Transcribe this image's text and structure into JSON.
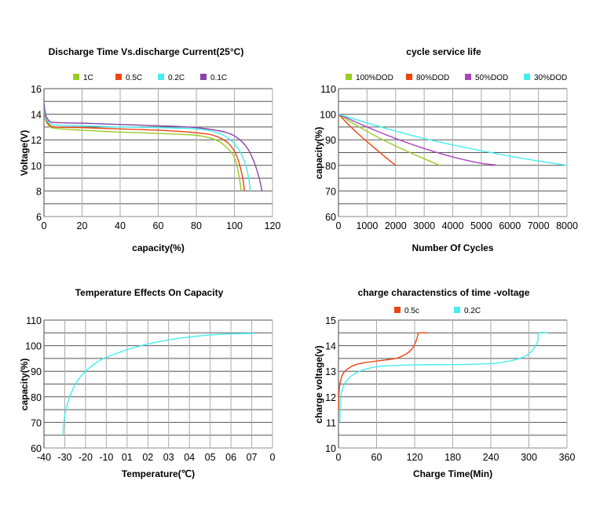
{
  "chart_data": [
    {
      "id": "discharge",
      "type": "line",
      "title": "Discharge Time Vs.discharge Current(25°C)",
      "xlabel": "capacity(%)",
      "ylabel": "Voltage(V)",
      "xlim": [
        0,
        120
      ],
      "ylim": [
        6,
        16
      ],
      "x_ticks": [
        "0",
        "20",
        "40",
        "60",
        "80",
        "100",
        "120"
      ],
      "y_ticks": [
        "6",
        "8",
        "10",
        "12",
        "14",
        "16"
      ],
      "grid": true,
      "legend": "top-center",
      "series": [
        {
          "name": "1C",
          "color": "#99cc22",
          "points": [
            [
              0,
              14.4
            ],
            [
              1,
              13.5
            ],
            [
              3,
              13.05
            ],
            [
              6,
              12.9
            ],
            [
              20,
              12.75
            ],
            [
              40,
              12.6
            ],
            [
              60,
              12.5
            ],
            [
              80,
              12.35
            ],
            [
              90,
              12.0
            ],
            [
              96,
              11.4
            ],
            [
              100,
              10.6
            ],
            [
              102,
              9.5
            ],
            [
              103,
              8.6
            ],
            [
              103.5,
              8
            ]
          ]
        },
        {
          "name": "0.5C",
          "color": "#ee4411",
          "points": [
            [
              0,
              14.5
            ],
            [
              1,
              13.6
            ],
            [
              3,
              13.15
            ],
            [
              6,
              13.0
            ],
            [
              20,
              12.95
            ],
            [
              40,
              12.85
            ],
            [
              60,
              12.75
            ],
            [
              80,
              12.55
            ],
            [
              90,
              12.3
            ],
            [
              97,
              11.7
            ],
            [
              101,
              10.8
            ],
            [
              103.5,
              9.6
            ],
            [
              104.8,
              8.6
            ],
            [
              105.2,
              8
            ]
          ]
        },
        {
          "name": "0.2C",
          "color": "#44eeee",
          "points": [
            [
              0,
              14.6
            ],
            [
              1,
              13.7
            ],
            [
              3,
              13.3
            ],
            [
              6,
              13.15
            ],
            [
              20,
              13.1
            ],
            [
              40,
              13.0
            ],
            [
              60,
              12.95
            ],
            [
              80,
              12.85
            ],
            [
              90,
              12.6
            ],
            [
              97,
              12.1
            ],
            [
              102,
              11.3
            ],
            [
              105.5,
              10.2
            ],
            [
              107.5,
              9.0
            ],
            [
              108.3,
              8
            ]
          ]
        },
        {
          "name": "0.1C",
          "color": "#8844aa",
          "points": [
            [
              0,
              14.8
            ],
            [
              1,
              13.9
            ],
            [
              3,
              13.45
            ],
            [
              6,
              13.35
            ],
            [
              20,
              13.3
            ],
            [
              40,
              13.2
            ],
            [
              60,
              13.1
            ],
            [
              80,
              12.95
            ],
            [
              95,
              12.6
            ],
            [
              102,
              12.1
            ],
            [
              107,
              11.3
            ],
            [
              110.5,
              10.2
            ],
            [
              113,
              9.0
            ],
            [
              114.5,
              8
            ]
          ]
        }
      ]
    },
    {
      "id": "cycle",
      "type": "line",
      "title": "cycle service life",
      "xlabel": "Number Of Cycles",
      "ylabel": "capacity(%)",
      "xlim": [
        0,
        8000
      ],
      "ylim": [
        60,
        110
      ],
      "x_ticks": [
        "0",
        "1000",
        "2000",
        "3000",
        "4000",
        "5000",
        "6000",
        "7000",
        "8000"
      ],
      "y_ticks": [
        "60",
        "70",
        "80",
        "90",
        "100",
        "110"
      ],
      "grid": true,
      "legend": "top-center",
      "series": [
        {
          "name": "100%DOD",
          "color": "#99cc22",
          "points": [
            [
              0,
              100
            ],
            [
              500,
              96.5
            ],
            [
              1000,
              93.3
            ],
            [
              1500,
              90.3
            ],
            [
              2000,
              87.6
            ],
            [
              2500,
              85.0
            ],
            [
              3000,
              82.6
            ],
            [
              3500,
              80.2
            ],
            [
              3550,
              80
            ]
          ]
        },
        {
          "name": "80%DOD",
          "color": "#ee4411",
          "points": [
            [
              0,
              100
            ],
            [
              400,
              95.4
            ],
            [
              800,
              91.2
            ],
            [
              1200,
              87.4
            ],
            [
              1600,
              83.6
            ],
            [
              2000,
              80
            ]
          ]
        },
        {
          "name": "50%DOD",
          "color": "#aa44bb",
          "points": [
            [
              0,
              100
            ],
            [
              1000,
              95.0
            ],
            [
              2000,
              90.5
            ],
            [
              3000,
              86.6
            ],
            [
              4000,
              83.3
            ],
            [
              5000,
              80.8
            ],
            [
              5500,
              80.2
            ]
          ]
        },
        {
          "name": "30%DOD",
          "color": "#44eeee",
          "points": [
            [
              0,
              100
            ],
            [
              1000,
              96.6
            ],
            [
              2000,
              93.4
            ],
            [
              3000,
              90.5
            ],
            [
              4000,
              88.0
            ],
            [
              5000,
              85.7
            ],
            [
              6000,
              83.6
            ],
            [
              7000,
              81.7
            ],
            [
              8000,
              80
            ]
          ]
        }
      ]
    },
    {
      "id": "temperature",
      "type": "line",
      "title": "Temperature Effects On Capacity",
      "xlabel": "Temperature(℃)",
      "ylabel": "capacity(%)",
      "xlim": [
        -40,
        80
      ],
      "ylim": [
        60,
        110
      ],
      "x_ticks": [
        "-40",
        "-30",
        "-20",
        "-10",
        "01",
        "02",
        "03",
        "04",
        "05",
        "06",
        "07",
        "0"
      ],
      "y_ticks": [
        "60",
        "70",
        "80",
        "90",
        "100",
        "110"
      ],
      "grid": true,
      "legend": "none",
      "series": [
        {
          "name": "capacity",
          "color": "#44eeee",
          "points": [
            [
              -30,
              65
            ],
            [
              -29.6,
              70
            ],
            [
              -28.5,
              75
            ],
            [
              -26.5,
              80
            ],
            [
              -23.5,
              85
            ],
            [
              -19.5,
              89
            ],
            [
              -15,
              92
            ],
            [
              -10,
              94.5
            ],
            [
              0,
              97.5
            ],
            [
              10,
              99.8
            ],
            [
              20,
              101.5
            ],
            [
              30,
              102.8
            ],
            [
              40,
              103.7
            ],
            [
              50,
              104.3
            ],
            [
              60,
              104.7
            ],
            [
              70,
              104.8
            ]
          ]
        }
      ]
    },
    {
      "id": "charge",
      "type": "line",
      "title": "charge charactenstics of time -voltage",
      "xlabel": "Charge Time(Min)",
      "ylabel": "charge voltage(v)",
      "xlim": [
        0,
        360
      ],
      "ylim": [
        10,
        15
      ],
      "x_ticks": [
        "0",
        "60",
        "120",
        "180",
        "240",
        "300",
        "360"
      ],
      "y_ticks": [
        "10",
        "11",
        "12",
        "13",
        "14",
        "15"
      ],
      "grid": true,
      "legend": "top-center",
      "series": [
        {
          "name": "0.5c",
          "color": "#ee4411",
          "points": [
            [
              0,
              11.5
            ],
            [
              1,
              12.2
            ],
            [
              3,
              12.6
            ],
            [
              7,
              12.9
            ],
            [
              15,
              13.1
            ],
            [
              30,
              13.28
            ],
            [
              60,
              13.4
            ],
            [
              90,
              13.5
            ],
            [
              105,
              13.65
            ],
            [
              115,
              13.85
            ],
            [
              121,
              14.1
            ],
            [
              125,
              14.4
            ],
            [
              127,
              14.5
            ],
            [
              140,
              14.5
            ]
          ]
        },
        {
          "name": "0.2C",
          "color": "#44eeee",
          "points": [
            [
              2,
              11
            ],
            [
              3,
              11.8
            ],
            [
              6,
              12.3
            ],
            [
              12,
              12.6
            ],
            [
              25,
              12.9
            ],
            [
              45,
              13.1
            ],
            [
              70,
              13.2
            ],
            [
              120,
              13.25
            ],
            [
              180,
              13.26
            ],
            [
              240,
              13.3
            ],
            [
              270,
              13.4
            ],
            [
              295,
              13.6
            ],
            [
              308,
              13.9
            ],
            [
              314,
              14.2
            ],
            [
              316,
              14.5
            ],
            [
              330,
              14.5
            ]
          ]
        }
      ]
    }
  ]
}
